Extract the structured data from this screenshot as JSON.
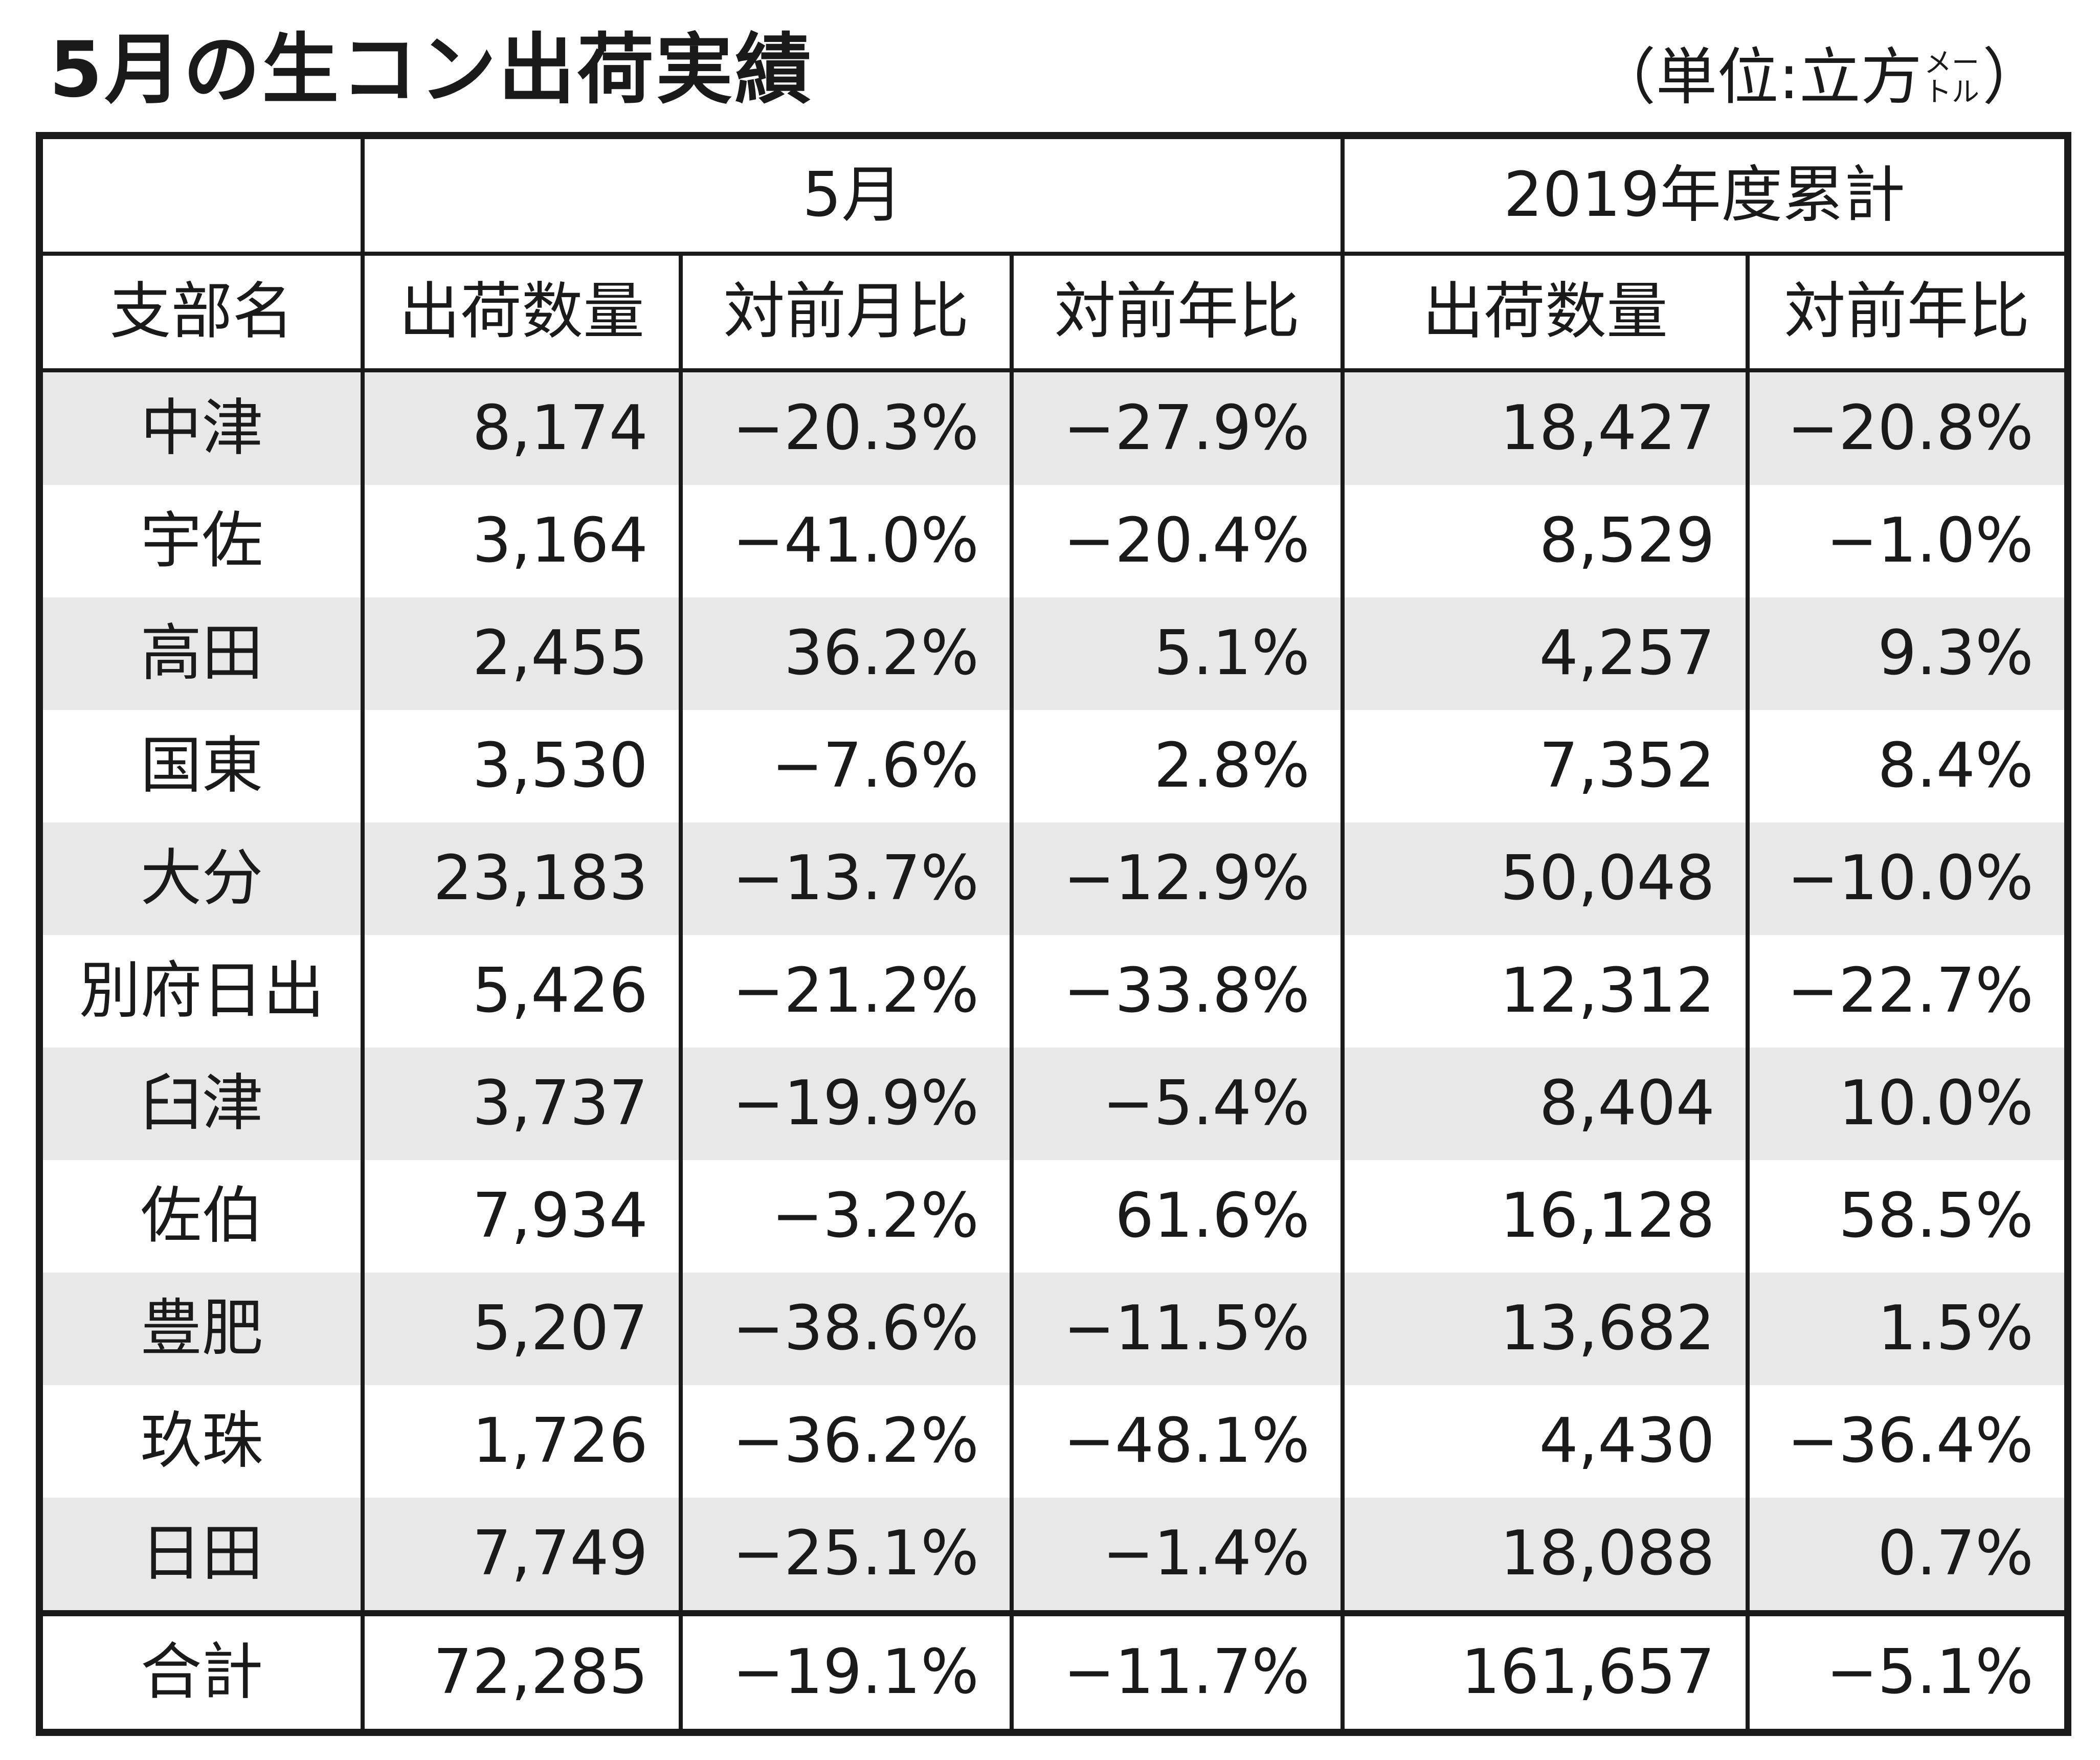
{
  "title": "5月の生コン出荷実績",
  "unit": {
    "open": "（単位:立方",
    "small_top": "メー",
    "small_bottom": "トル",
    "close": "）"
  },
  "table": {
    "group_headers": [
      "",
      "5月",
      "2019年度累計"
    ],
    "column_headers": [
      "支部名",
      "出荷数量",
      "対前月比",
      "対前年比",
      "出荷数量",
      "対前年比"
    ],
    "rows": [
      {
        "name": "中津",
        "may_qty": "8,174",
        "mom": "−20.3%",
        "yoy": "−27.9%",
        "cum_qty": "18,427",
        "cum_yoy": "−20.8%"
      },
      {
        "name": "宇佐",
        "may_qty": "3,164",
        "mom": "−41.0%",
        "yoy": "−20.4%",
        "cum_qty": "8,529",
        "cum_yoy": "−1.0%"
      },
      {
        "name": "高田",
        "may_qty": "2,455",
        "mom": "36.2%",
        "yoy": "5.1%",
        "cum_qty": "4,257",
        "cum_yoy": "9.3%"
      },
      {
        "name": "国東",
        "may_qty": "3,530",
        "mom": "−7.6%",
        "yoy": "2.8%",
        "cum_qty": "7,352",
        "cum_yoy": "8.4%"
      },
      {
        "name": "大分",
        "may_qty": "23,183",
        "mom": "−13.7%",
        "yoy": "−12.9%",
        "cum_qty": "50,048",
        "cum_yoy": "−10.0%"
      },
      {
        "name": "別府日出",
        "may_qty": "5,426",
        "mom": "−21.2%",
        "yoy": "−33.8%",
        "cum_qty": "12,312",
        "cum_yoy": "−22.7%"
      },
      {
        "name": "臼津",
        "may_qty": "3,737",
        "mom": "−19.9%",
        "yoy": "−5.4%",
        "cum_qty": "8,404",
        "cum_yoy": "10.0%"
      },
      {
        "name": "佐伯",
        "may_qty": "7,934",
        "mom": "−3.2%",
        "yoy": "61.6%",
        "cum_qty": "16,128",
        "cum_yoy": "58.5%"
      },
      {
        "name": "豊肥",
        "may_qty": "5,207",
        "mom": "−38.6%",
        "yoy": "−11.5%",
        "cum_qty": "13,682",
        "cum_yoy": "1.5%"
      },
      {
        "name": "玖珠",
        "may_qty": "1,726",
        "mom": "−36.2%",
        "yoy": "−48.1%",
        "cum_qty": "4,430",
        "cum_yoy": "−36.4%"
      },
      {
        "name": "日田",
        "may_qty": "7,749",
        "mom": "−25.1%",
        "yoy": "−1.4%",
        "cum_qty": "18,088",
        "cum_yoy": "0.7%"
      }
    ],
    "total": {
      "name": "合計",
      "may_qty": "72,285",
      "mom": "−19.1%",
      "yoy": "−11.7%",
      "cum_qty": "161,657",
      "cum_yoy": "−5.1%"
    }
  },
  "colors": {
    "text": "#1a1a1a",
    "row_shade": "#e8e8e8",
    "background": "#ffffff"
  }
}
